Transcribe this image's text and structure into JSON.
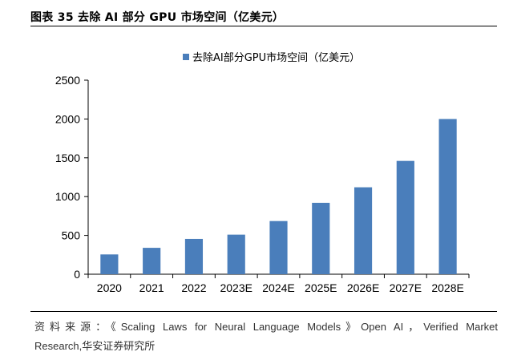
{
  "figure": {
    "title": "图表 35 去除 AI 部分 GPU 市场空间（亿美元）"
  },
  "source": {
    "line1": "资料来源：《Scaling Laws for Neural Language Models》Open AI，Verified Market",
    "line2": "Research,华安证券研究所"
  },
  "chart_data": {
    "type": "bar",
    "legend": "去除AI部分GPU市场空间（亿美元）",
    "legend_position": "top-center",
    "categories": [
      "2020",
      "2021",
      "2022",
      "2023E",
      "2024E",
      "2025E",
      "2026E",
      "2027E",
      "2028E"
    ],
    "series": [
      {
        "name": "去除AI部分GPU市场空间（亿美元）",
        "values": [
          255,
          340,
          455,
          510,
          685,
          920,
          1120,
          1460,
          2000
        ]
      }
    ],
    "ylim": [
      0,
      2500
    ],
    "yticks": [
      "0",
      "500",
      "1000",
      "1500",
      "2000",
      "2500"
    ],
    "grid": false,
    "bar_color": "#4a7ebb"
  }
}
